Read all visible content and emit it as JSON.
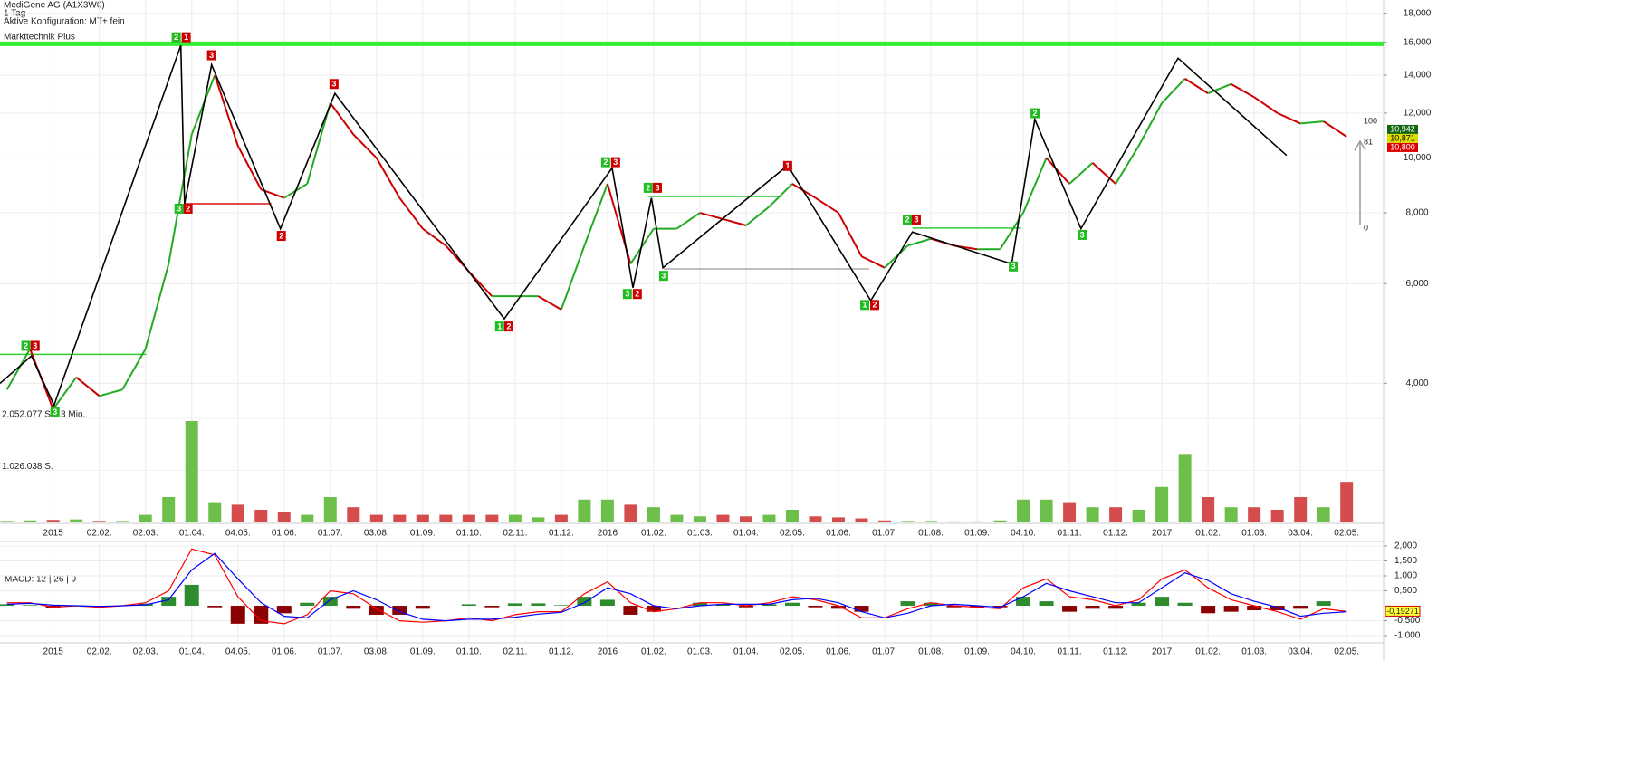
{
  "chart_data": [
    {
      "type": "line",
      "title": "MediGene AG (A1X3W0)",
      "subtitle": "1 Tag",
      "config": "Aktive Konfiguration: MT+ fein",
      "indicator": "Markttechnik Plus",
      "log_scale": true,
      "grid": true,
      "up_color": "#22aa22",
      "down_color": "#cc0000",
      "xlim": [
        -0.3,
        59.6
      ],
      "ylim": [
        3.47,
        19.0
      ],
      "yticks": [
        {
          "value": 4,
          "label": "4,000"
        },
        {
          "value": 6,
          "label": "6,000"
        },
        {
          "value": 8,
          "label": "8,000"
        },
        {
          "value": 10,
          "label": "10,000"
        },
        {
          "value": 12,
          "label": "12,000"
        },
        {
          "value": 14,
          "label": "14,000"
        },
        {
          "value": 16,
          "label": "16,000"
        },
        {
          "value": 18,
          "label": "18,000"
        }
      ],
      "categories": [
        null,
        null,
        "2015",
        null,
        "02.02.",
        null,
        "02.03.",
        null,
        "01.04.",
        null,
        "04.05.",
        null,
        "01.06.",
        null,
        "01.07.",
        null,
        "03.08.",
        null,
        "01.09.",
        null,
        "01.10.",
        null,
        "02.11.",
        null,
        "01.12.",
        null,
        "2016",
        null,
        "01.02.",
        null,
        "01.03.",
        null,
        "01.04.",
        null,
        "02.05.",
        null,
        "01.06.",
        null,
        "01.07.",
        null,
        "01.08.",
        null,
        "01.09.",
        null,
        "04.10.",
        null,
        "01.11.",
        null,
        "01.12.",
        null,
        "2017",
        null,
        "01.02.",
        null,
        "01.03.",
        null,
        "03.04.",
        null,
        "02.05."
      ],
      "values": [
        3.9,
        4.6,
        3.6,
        4.1,
        3.8,
        3.9,
        4.6,
        6.5,
        11.0,
        14.0,
        10.5,
        8.8,
        8.5,
        9.0,
        12.5,
        11.0,
        10.0,
        8.5,
        7.5,
        7.0,
        6.3,
        5.7,
        5.7,
        5.7,
        5.4,
        7.0,
        9.0,
        6.5,
        7.5,
        7.5,
        8.0,
        7.8,
        7.6,
        8.2,
        9.0,
        8.5,
        8.0,
        6.7,
        6.4,
        7.0,
        7.2,
        7.0,
        6.9,
        6.9,
        8.0,
        10.0,
        9.0,
        9.8,
        9.0,
        10.5,
        12.5,
        13.8,
        13.0,
        13.5,
        12.8,
        12.0,
        11.5,
        11.6,
        10.9
      ],
      "zigzag": {
        "color": "#000000",
        "x": [
          -0.3,
          1.06,
          2.04,
          7.53,
          7.69,
          8.86,
          11.84,
          14.2,
          21.53,
          26.2,
          27.1,
          27.9,
          28.4,
          33.8,
          37.4,
          39.2,
          43.5,
          44.5,
          46.5,
          50.7,
          55.4
        ],
        "values": [
          4.0,
          4.47,
          3.66,
          15.8,
          8.3,
          14.6,
          7.5,
          13.0,
          5.2,
          9.6,
          5.9,
          8.5,
          6.4,
          9.7,
          5.6,
          7.4,
          6.5,
          11.7,
          7.5,
          15.0,
          10.1
        ]
      },
      "levels": [
        {
          "value": 15.9,
          "color": "#33ee33",
          "width": 5,
          "x": [
            -0.3,
            59.6
          ]
        },
        {
          "value": 4.5,
          "color": "#33cc33",
          "width": 1.5,
          "x": [
            -0.3,
            6.04
          ]
        },
        {
          "value": 8.3,
          "color": "#dd1111",
          "width": 1.5,
          "x": [
            7.69,
            11.45
          ]
        },
        {
          "value": 8.55,
          "color": "#33cc33",
          "width": 1.5,
          "x": [
            27.76,
            33.5
          ]
        },
        {
          "value": 6.37,
          "color": "#aaaaaa",
          "width": 1.5,
          "x": [
            28.43,
            37.33
          ]
        },
        {
          "value": 7.52,
          "color": "#33cc33",
          "width": 1.5,
          "x": [
            39.2,
            43.9
          ]
        }
      ],
      "markers": [
        {
          "label": "2",
          "color": "#22bb22",
          "x": 0.82,
          "value": 4.65
        },
        {
          "label": "3",
          "color": "#cc0000",
          "x": 1.22,
          "value": 4.65
        },
        {
          "label": "3",
          "color": "#22bb22",
          "x": 2.08,
          "value": 3.55
        },
        {
          "label": "2",
          "color": "#22bb22",
          "x": 7.33,
          "value": 16.3
        },
        {
          "label": "1",
          "color": "#cc0000",
          "x": 7.76,
          "value": 16.3
        },
        {
          "label": "3",
          "color": "#22bb22",
          "x": 7.45,
          "value": 8.12
        },
        {
          "label": "2",
          "color": "#cc0000",
          "x": 7.84,
          "value": 8.12
        },
        {
          "label": "3",
          "color": "#cc0000",
          "x": 8.86,
          "value": 15.15
        },
        {
          "label": "2",
          "color": "#cc0000",
          "x": 11.88,
          "value": 7.27
        },
        {
          "label": "3",
          "color": "#cc0000",
          "x": 14.16,
          "value": 13.48
        },
        {
          "label": "1",
          "color": "#22bb22",
          "x": 21.33,
          "value": 5.03
        },
        {
          "label": "2",
          "color": "#cc0000",
          "x": 21.73,
          "value": 5.03
        },
        {
          "label": "2",
          "color": "#22bb22",
          "x": 25.92,
          "value": 9.81
        },
        {
          "label": "3",
          "color": "#cc0000",
          "x": 26.35,
          "value": 9.81
        },
        {
          "label": "3",
          "color": "#22bb22",
          "x": 26.86,
          "value": 5.74
        },
        {
          "label": "2",
          "color": "#cc0000",
          "x": 27.29,
          "value": 5.74
        },
        {
          "label": "2",
          "color": "#22bb22",
          "x": 27.76,
          "value": 8.84
        },
        {
          "label": "3",
          "color": "#cc0000",
          "x": 28.16,
          "value": 8.84
        },
        {
          "label": "3",
          "color": "#22bb22",
          "x": 28.43,
          "value": 6.18
        },
        {
          "label": "1",
          "color": "#cc0000",
          "x": 33.8,
          "value": 9.66
        },
        {
          "label": "1",
          "color": "#22bb22",
          "x": 37.14,
          "value": 5.49
        },
        {
          "label": "2",
          "color": "#cc0000",
          "x": 37.57,
          "value": 5.49
        },
        {
          "label": "2",
          "color": "#22bb22",
          "x": 38.98,
          "value": 7.77
        },
        {
          "label": "3",
          "color": "#cc0000",
          "x": 39.37,
          "value": 7.77
        },
        {
          "label": "3",
          "color": "#22bb22",
          "x": 43.57,
          "value": 6.42
        },
        {
          "label": "2",
          "color": "#22bb22",
          "x": 44.51,
          "value": 11.97
        },
        {
          "label": "3",
          "color": "#22bb22",
          "x": 46.55,
          "value": 7.3
        }
      ],
      "last_prices": [
        {
          "value": 10.942,
          "label": "10,942",
          "color": "#116611"
        },
        {
          "value": 10.871,
          "label": "10,871",
          "color": "#dddd00"
        },
        {
          "value": 10.8,
          "label": "10,800",
          "color": "#dd0000"
        }
      ],
      "side_labels": [
        "100",
        "81",
        "0"
      ]
    },
    {
      "type": "bar",
      "up_color": "#6cbf4a",
      "down_color": "#d44c4c",
      "grid": true,
      "ylim": [
        0,
        2052077
      ],
      "yticks": [
        {
          "value": 2052077,
          "label": "2.052.077 S. / 3 Mio."
        },
        {
          "value": 1026038,
          "label": "1.026.038 S."
        }
      ],
      "categories": [
        null,
        null,
        "2015",
        null,
        "02.02.",
        null,
        "02.03.",
        null,
        "01.04.",
        null,
        "04.05.",
        null,
        "01.06.",
        null,
        "01.07.",
        null,
        "03.08.",
        null,
        "01.09.",
        null,
        "01.10.",
        null,
        "02.11.",
        null,
        "01.12.",
        null,
        "2016",
        null,
        "01.02.",
        null,
        "01.03.",
        null,
        "01.04.",
        null,
        "02.05.",
        null,
        "01.06.",
        null,
        "01.07.",
        null,
        "01.08.",
        null,
        "01.09.",
        null,
        "04.10.",
        null,
        "01.11.",
        null,
        "01.12.",
        null,
        "2017",
        null,
        "01.02.",
        null,
        "01.03.",
        null,
        "03.04.",
        null,
        "02.05."
      ],
      "values": [
        30000,
        40000,
        50000,
        60000,
        30000,
        30000,
        150000,
        500000,
        2000000,
        400000,
        350000,
        250000,
        200000,
        150000,
        500000,
        300000,
        150000,
        150000,
        150000,
        150000,
        150000,
        150000,
        150000,
        100000,
        150000,
        450000,
        450000,
        350000,
        300000,
        150000,
        120000,
        150000,
        120000,
        150000,
        250000,
        120000,
        100000,
        80000,
        40000,
        30000,
        30000,
        20000,
        20000,
        40000,
        450000,
        450000,
        400000,
        300000,
        300000,
        250000,
        700000,
        1350000,
        500000,
        300000,
        300000,
        250000,
        500000,
        300000,
        800000
      ]
    },
    {
      "type": "line",
      "title": "MACD: 12 | 26 | 9",
      "grid": true,
      "ylim": [
        -1.24,
        2.09
      ],
      "yticks": [
        {
          "value": 2,
          "label": "2,000"
        },
        {
          "value": 1.5,
          "label": "1,500"
        },
        {
          "value": 1,
          "label": "1,000"
        },
        {
          "value": 0.5,
          "label": "0,500"
        },
        {
          "value": -0.5,
          "label": "-0,500"
        },
        {
          "value": -1,
          "label": "-1,000"
        }
      ],
      "categories": [
        null,
        null,
        "2015",
        null,
        "02.02.",
        null,
        "02.03.",
        null,
        "01.04.",
        null,
        "04.05.",
        null,
        "01.06.",
        null,
        "01.07.",
        null,
        "03.08.",
        null,
        "01.09.",
        null,
        "01.10.",
        null,
        "02.11.",
        null,
        "01.12.",
        null,
        "2016",
        null,
        "01.02.",
        null,
        "01.03.",
        null,
        "01.04.",
        null,
        "02.05.",
        null,
        "01.06.",
        null,
        "01.07.",
        null,
        "01.08.",
        null,
        "01.09.",
        null,
        "04.10.",
        null,
        "01.11.",
        null,
        "01.12.",
        null,
        "2017",
        null,
        "01.02.",
        null,
        "01.03.",
        null,
        "03.04.",
        null,
        "02.05."
      ],
      "histogram": {
        "up_color": "#2e8b2e",
        "down_color": "#8b0000",
        "values": [
          0.05,
          0.02,
          -0.07,
          0,
          -0.03,
          0,
          0.07,
          0.3,
          0.7,
          -0.05,
          -0.6,
          -0.6,
          -0.25,
          0.1,
          0.3,
          -0.1,
          -0.3,
          -0.3,
          -0.1,
          0,
          0.05,
          -0.05,
          0.08,
          0.08,
          0.02,
          0.3,
          0.2,
          -0.3,
          -0.2,
          0,
          0.1,
          0.05,
          -0.05,
          0.05,
          0.1,
          -0.05,
          -0.1,
          -0.2,
          0,
          0.15,
          0.1,
          -0.05,
          -0.05,
          -0.05,
          0.3,
          0.15,
          -0.2,
          -0.1,
          -0.1,
          0.1,
          0.3,
          0.1,
          -0.25,
          -0.2,
          -0.15,
          -0.15,
          -0.1,
          0.15,
          0
        ]
      },
      "series": [
        {
          "color": "#ff0000",
          "values": [
            0.1,
            0.1,
            -0.05,
            0,
            -0.05,
            0,
            0.1,
            0.5,
            1.9,
            1.7,
            0.3,
            -0.5,
            -0.6,
            -0.3,
            0.5,
            0.4,
            -0.1,
            -0.5,
            -0.55,
            -0.5,
            -0.4,
            -0.5,
            -0.3,
            -0.2,
            -0.2,
            0.4,
            0.8,
            0.1,
            -0.2,
            -0.1,
            0.1,
            0.1,
            0,
            0.1,
            0.3,
            0.2,
            0,
            -0.4,
            -0.4,
            -0.1,
            0.1,
            0,
            -0.05,
            -0.1,
            0.6,
            0.9,
            0.3,
            0.2,
            0,
            0.2,
            0.9,
            1.2,
            0.6,
            0.2,
            0,
            -0.2,
            -0.45,
            -0.1,
            -0.19271
          ]
        },
        {
          "color": "#0000ff",
          "values": [
            0.05,
            0.08,
            0.02,
            0,
            -0.02,
            0,
            0.03,
            0.2,
            1.2,
            1.75,
            0.9,
            0.1,
            -0.35,
            -0.4,
            0.2,
            0.5,
            0.2,
            -0.2,
            -0.45,
            -0.5,
            -0.45,
            -0.45,
            -0.38,
            -0.28,
            -0.22,
            0.1,
            0.6,
            0.4,
            0,
            -0.1,
            0,
            0.05,
            0.05,
            0.05,
            0.2,
            0.25,
            0.1,
            -0.2,
            -0.4,
            -0.25,
            0,
            0.05,
            0,
            -0.05,
            0.3,
            0.75,
            0.5,
            0.3,
            0.1,
            0.1,
            0.6,
            1.1,
            0.85,
            0.4,
            0.15,
            -0.05,
            -0.35,
            -0.25,
            -0.2
          ]
        }
      ],
      "last_value": {
        "value": -0.19271,
        "label": "-0,19271"
      }
    }
  ]
}
